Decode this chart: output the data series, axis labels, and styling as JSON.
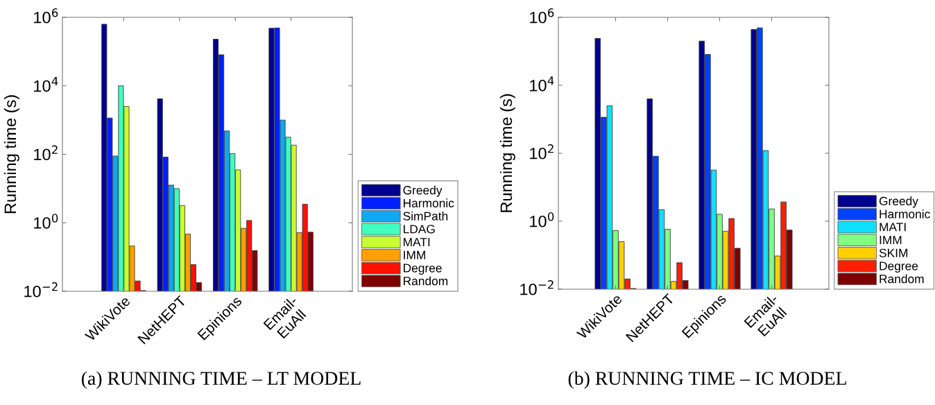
{
  "chart_data": [
    {
      "type": "bar",
      "ylabel": "Running time (s)",
      "categories": [
        "WikiVote",
        "NetHEPT",
        "Epinions",
        "Email-\nEuAll"
      ],
      "log": "y",
      "ylim": [
        0.01,
        1000000
      ],
      "yticks": [
        {
          "value": 0.01,
          "label": "10$^{−2}$"
        },
        {
          "value": 1,
          "label": "10$^{0}$"
        },
        {
          "value": 100,
          "label": "10$^{2}$"
        },
        {
          "value": 10000,
          "label": "10$^{4}$"
        },
        {
          "value": 1000000,
          "label": "10$^{6}$"
        }
      ],
      "grid": false,
      "legend": "right",
      "annotations": [
        "(a) RUNNING TIME – LT MODEL"
      ],
      "series": [
        {
          "name": "Greedy",
          "color": "#00008f",
          "values": [
            630000,
            4200,
            230000,
            480000
          ]
        },
        {
          "name": "Harmonic",
          "color": "#0020ff",
          "values": [
            1150,
            83,
            81000,
            490000
          ]
        },
        {
          "name": "SimPath",
          "color": "#10a8f0",
          "values": [
            89,
            12.6,
            480,
            1000
          ]
        },
        {
          "name": "LDAG",
          "color": "#40ffc0",
          "values": [
            10000,
            10,
            105,
            316
          ]
        },
        {
          "name": "MATI",
          "color": "#c8ff30",
          "values": [
            2500,
            3.2,
            35,
            185
          ]
        },
        {
          "name": "IMM",
          "color": "#ff9f00",
          "values": [
            0.21,
            0.47,
            0.69,
            0.52
          ]
        },
        {
          "name": "Degree",
          "color": "#ff1000",
          "values": [
            0.02,
            0.06,
            1.17,
            3.5
          ]
        },
        {
          "name": "Random",
          "color": "#800000",
          "values": [
            0.0105,
            0.018,
            0.155,
            0.53
          ]
        }
      ]
    },
    {
      "type": "bar",
      "ylabel": "Running time (s)",
      "categories": [
        "WikiVote",
        "NetHEPT",
        "Epinions",
        "Email-\nEuAll"
      ],
      "log": "y",
      "ylim": [
        0.01,
        1000000
      ],
      "yticks": [
        {
          "value": 0.01,
          "label": "10$^{−2}$"
        },
        {
          "value": 1,
          "label": "10$^{0}$"
        },
        {
          "value": 100,
          "label": "10$^{2}$"
        },
        {
          "value": 10000,
          "label": "10$^{4}$"
        },
        {
          "value": 1000000,
          "label": "10$^{6}$"
        }
      ],
      "grid": false,
      "legend": "right",
      "annotations": [
        "(b) RUNNING TIME – IC MODEL"
      ],
      "series": [
        {
          "name": "Greedy",
          "color": "#00008f",
          "values": [
            240000,
            4000,
            200000,
            440000
          ]
        },
        {
          "name": "Harmonic",
          "color": "#0040ff",
          "values": [
            1150,
            82,
            81000,
            490000
          ]
        },
        {
          "name": "MATI",
          "color": "#10e0ff",
          "values": [
            2500,
            2.2,
            32,
            120
          ]
        },
        {
          "name": "IMM",
          "color": "#80ff80",
          "values": [
            0.53,
            0.58,
            1.6,
            2.3
          ]
        },
        {
          "name": "SKIM",
          "color": "#ffcf00",
          "values": [
            0.25,
            0.017,
            0.51,
            0.095
          ]
        },
        {
          "name": "Degree",
          "color": "#ff2000",
          "values": [
            0.02,
            0.06,
            1.2,
            3.7
          ]
        },
        {
          "name": "Random",
          "color": "#800000",
          "values": [
            0.0105,
            0.018,
            0.16,
            0.55
          ]
        }
      ]
    }
  ]
}
